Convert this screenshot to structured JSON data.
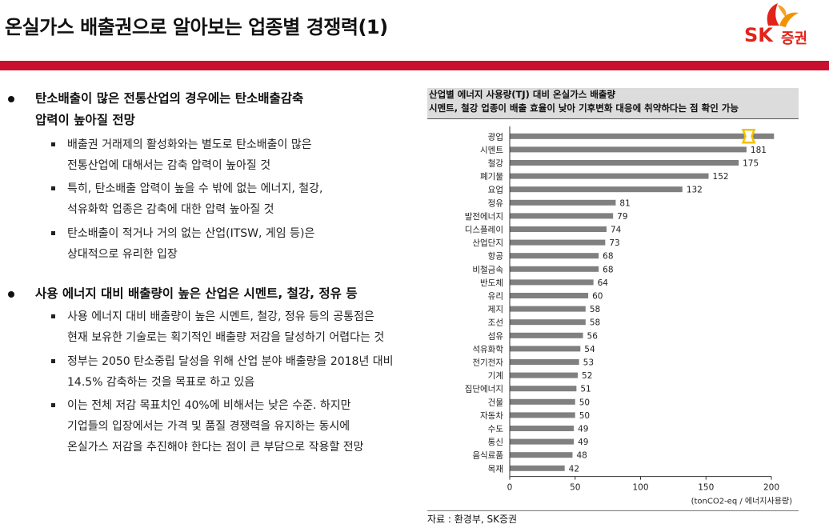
{
  "header": {
    "title": "온실가스 배출권으로 알아보는 업종별 경쟁력(1)",
    "logo_text": "SK",
    "logo_sub": "증권"
  },
  "sections": [
    {
      "heading_lines": [
        "탄소배출이 많은 전통산업의 경우에는 탄소배출감축",
        "압력이 높아질 전망"
      ],
      "items": [
        [
          "배출권 거래제의 활성화와는 별도로 탄소배출이 많은",
          "전통산업에 대해서는 감축 압력이 높아질 것"
        ],
        [
          "특히, 탄소배출 압력이 높을 수 밖에 없는 에너지, 철강,",
          "석유화학 업종은 감축에 대한 압력 높아질 것"
        ],
        [
          "탄소배출이 적거나 거의 없는 산업(ITSW, 게임 등)은",
          "상대적으로 유리한 입장"
        ]
      ]
    },
    {
      "heading_lines": [
        "사용 에너지 대비 배출량이 높은 산업은 시멘트, 철강, 정유 등"
      ],
      "items": [
        [
          "사용 에너지 대비 배출량이 높은 시멘트, 철강, 정유 등의 공통점은",
          "현재 보유한 기술로는 획기적인 배출량 저감을 달성하기 어렵다는 것"
        ],
        [
          "정부는 2050 탄소중립 달성을 위해 산업 분야 배출량을  2018년 대비",
          "14.5% 감축하는 것을 목표로 하고 있음"
        ],
        [
          "이는 전체 저감 목표치인 40%에 비해서는 낮은 수준. 하지만",
          "기업들의 입장에서는 가격 및 품질 경쟁력을 유지하는 동시에",
          "온실가스 저감을 추진해야 한다는 점이 큰 부담으로 작용할 전망"
        ]
      ]
    }
  ],
  "chart_header": {
    "line1": "산업별 에너지 사용량(TJ) 대비 온실가스 배출량",
    "line2": "시멘트, 철강 업종이 배출 효율이 낮아 기후변화 대응에 취약하다는 점 확인 가능"
  },
  "source": "자료 : 환경부, SK증권",
  "colors": {
    "bar": "#808080",
    "accent": "#c8102e",
    "break_marker": "#f2c200"
  },
  "chart_data": {
    "type": "bar",
    "orientation": "horizontal",
    "categories": [
      "광업",
      "시멘트",
      "철강",
      "폐기물",
      "요업",
      "정유",
      "발전에너지",
      "디스플레이",
      "산업단지",
      "항공",
      "비철금속",
      "반도체",
      "유리",
      "제지",
      "조선",
      "섬유",
      "석유화학",
      "전기전자",
      "기계",
      "집단에너지",
      "건물",
      "자동차",
      "수도",
      "통신",
      "음식료품",
      "목재"
    ],
    "values": [
      202,
      181,
      175,
      152,
      132,
      81,
      79,
      74,
      73,
      68,
      68,
      64,
      60,
      58,
      58,
      56,
      54,
      53,
      52,
      51,
      50,
      50,
      49,
      49,
      48,
      42
    ],
    "data_labels": [
      "",
      "181",
      "175",
      "152",
      "132",
      "81",
      "79",
      "74",
      "73",
      "68",
      "68",
      "64",
      "60",
      "58",
      "58",
      "56",
      "54",
      "53",
      "52",
      "51",
      "50",
      "50",
      "49",
      "49",
      "48",
      "42"
    ],
    "xlim": [
      0,
      200
    ],
    "xticks": [
      "0",
      "50",
      "100",
      "150",
      "200"
    ],
    "unit": "(tonCO2-eq / 에너지사용량)",
    "axis_break_on": "광업",
    "grid": false
  }
}
